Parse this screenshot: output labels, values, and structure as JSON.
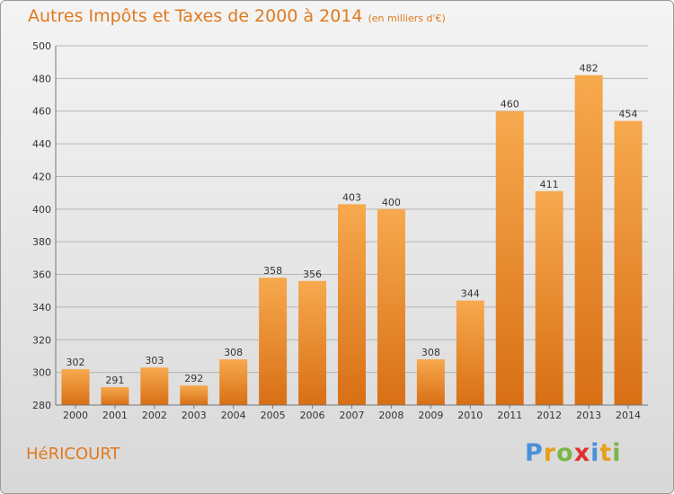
{
  "header": {
    "title": "Autres Impôts et Taxes de 2000 à 2014",
    "unit": "(en milliers d'€)"
  },
  "footer": {
    "place": "HéRICOURT",
    "logo_letters": [
      "P",
      "r",
      "o",
      "x",
      "i",
      "t",
      "i"
    ],
    "logo_colors": [
      "#4a90d9",
      "#e8a020",
      "#7ab648",
      "#e03030",
      "#4a90d9",
      "#e8a020",
      "#7ab648"
    ]
  },
  "colors": {
    "bar_top": "#f7a94e",
    "bar_bottom": "#d86f15",
    "accent": "#e07a1f",
    "grid": "#b5b5b5"
  },
  "chart_data": {
    "type": "bar",
    "title": "Autres Impôts et Taxes de 2000 à 2014",
    "subtitle": "(en milliers d'€)",
    "xlabel": "",
    "ylabel": "",
    "categories": [
      "2000",
      "2001",
      "2002",
      "2003",
      "2004",
      "2005",
      "2006",
      "2007",
      "2008",
      "2009",
      "2010",
      "2011",
      "2012",
      "2013",
      "2014"
    ],
    "values": [
      302,
      291,
      303,
      292,
      308,
      358,
      356,
      403,
      400,
      308,
      344,
      460,
      411,
      482,
      454
    ],
    "ylim": [
      280,
      500
    ],
    "yticks": [
      280,
      300,
      320,
      340,
      360,
      380,
      400,
      420,
      440,
      460,
      480,
      500
    ],
    "grid": true,
    "legend": "none"
  }
}
